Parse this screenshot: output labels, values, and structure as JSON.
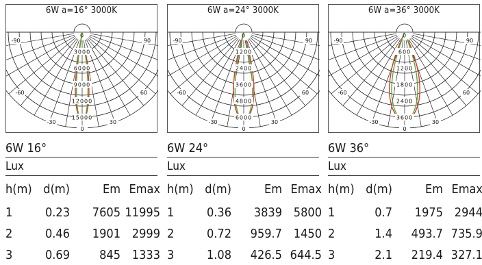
{
  "panels": [
    {
      "title": "6W  a=16°  3000K",
      "name": "6W 16°",
      "unit": "Lux",
      "ring_labels": [
        "0",
        "3000",
        "6000",
        "9000",
        "12000",
        "15000"
      ],
      "angle_labels": {
        "left90": "-90",
        "right90": "90",
        "left60": "-60",
        "right60": "60",
        "left30": "-30",
        "right30": "30",
        "bottom": "0"
      },
      "beam_angle_deg": 16,
      "headers": [
        "h(m)",
        "d(m)",
        "Em",
        "Emax"
      ],
      "rows": [
        [
          "1",
          "0.23",
          "7605",
          "11995"
        ],
        [
          "2",
          "0.46",
          "1901",
          "2999"
        ],
        [
          "3",
          "0.69",
          "845",
          "1333"
        ]
      ]
    },
    {
      "title": "6W  a=24°  3000K",
      "name": "6W 24°",
      "unit": "Lux",
      "ring_labels": [
        "0",
        "1200",
        "2400",
        "3600",
        "4800",
        "6000"
      ],
      "angle_labels": {
        "left90": "-90",
        "right90": "90",
        "left60": "-60",
        "right60": "60",
        "left30": "-30",
        "right30": "30",
        "bottom": "0"
      },
      "beam_angle_deg": 24,
      "headers": [
        "h(m)",
        "d(m)",
        "Em",
        "Emax"
      ],
      "rows": [
        [
          "1",
          "0.36",
          "3839",
          "5800"
        ],
        [
          "2",
          "0.72",
          "959.7",
          "1450"
        ],
        [
          "3",
          "1.08",
          "426.5",
          "644.5"
        ]
      ]
    },
    {
      "title": "6W  a=36°  3000K",
      "name": "6W 36°",
      "unit": "Lux",
      "ring_labels": [
        "0",
        "600",
        "1200",
        "1800",
        "2400",
        "3600"
      ],
      "angle_labels": {
        "left90": "-90",
        "right90": "90",
        "left60": "-60",
        "right60": "60",
        "left30": "-30",
        "right30": "30",
        "bottom": "0"
      },
      "beam_angle_deg": 36,
      "headers": [
        "h(m)",
        "d(m)",
        "Em",
        "Emax"
      ],
      "rows": [
        [
          "1",
          "0.7",
          "1975",
          "2944"
        ],
        [
          "2",
          "1.4",
          "493.7",
          "735.9"
        ],
        [
          "3",
          "2.1",
          "219.4",
          "327.1"
        ]
      ]
    }
  ],
  "colors": {
    "curve_red": "#d83a2c",
    "curve_green": "#5aa83a",
    "grid": "#222222"
  }
}
